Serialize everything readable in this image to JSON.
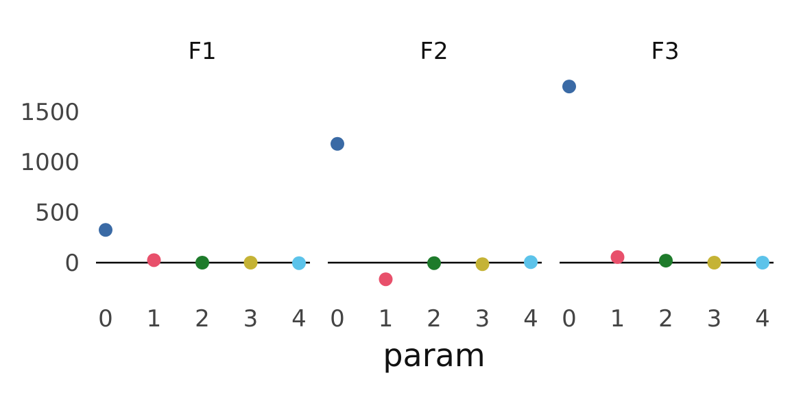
{
  "chart_data": {
    "type": "scatter",
    "xlabel": "param",
    "ylabel": "",
    "ylim": [
      -250,
      1800
    ],
    "xlim": [
      -0.2,
      4.2
    ],
    "y_ticks": [
      0,
      500,
      1000,
      1500
    ],
    "x_ticks": [
      0,
      1,
      2,
      3,
      4
    ],
    "grid": false,
    "legend": "none",
    "point_colors": [
      "#3a6aa5",
      "#e8506b",
      "#1e7b2b",
      "#c5b335",
      "#5cc3ea"
    ],
    "reference_line": 0,
    "facets": [
      {
        "title": "F1",
        "x": [
          0,
          1,
          2,
          3,
          4
        ],
        "y": [
          325,
          25,
          0,
          0,
          -5
        ]
      },
      {
        "title": "F2",
        "x": [
          0,
          1,
          2,
          3,
          4
        ],
        "y": [
          1180,
          -165,
          -5,
          -15,
          5
        ]
      },
      {
        "title": "F3",
        "x": [
          0,
          1,
          2,
          3,
          4
        ],
        "y": [
          1750,
          55,
          20,
          0,
          0
        ]
      }
    ]
  }
}
